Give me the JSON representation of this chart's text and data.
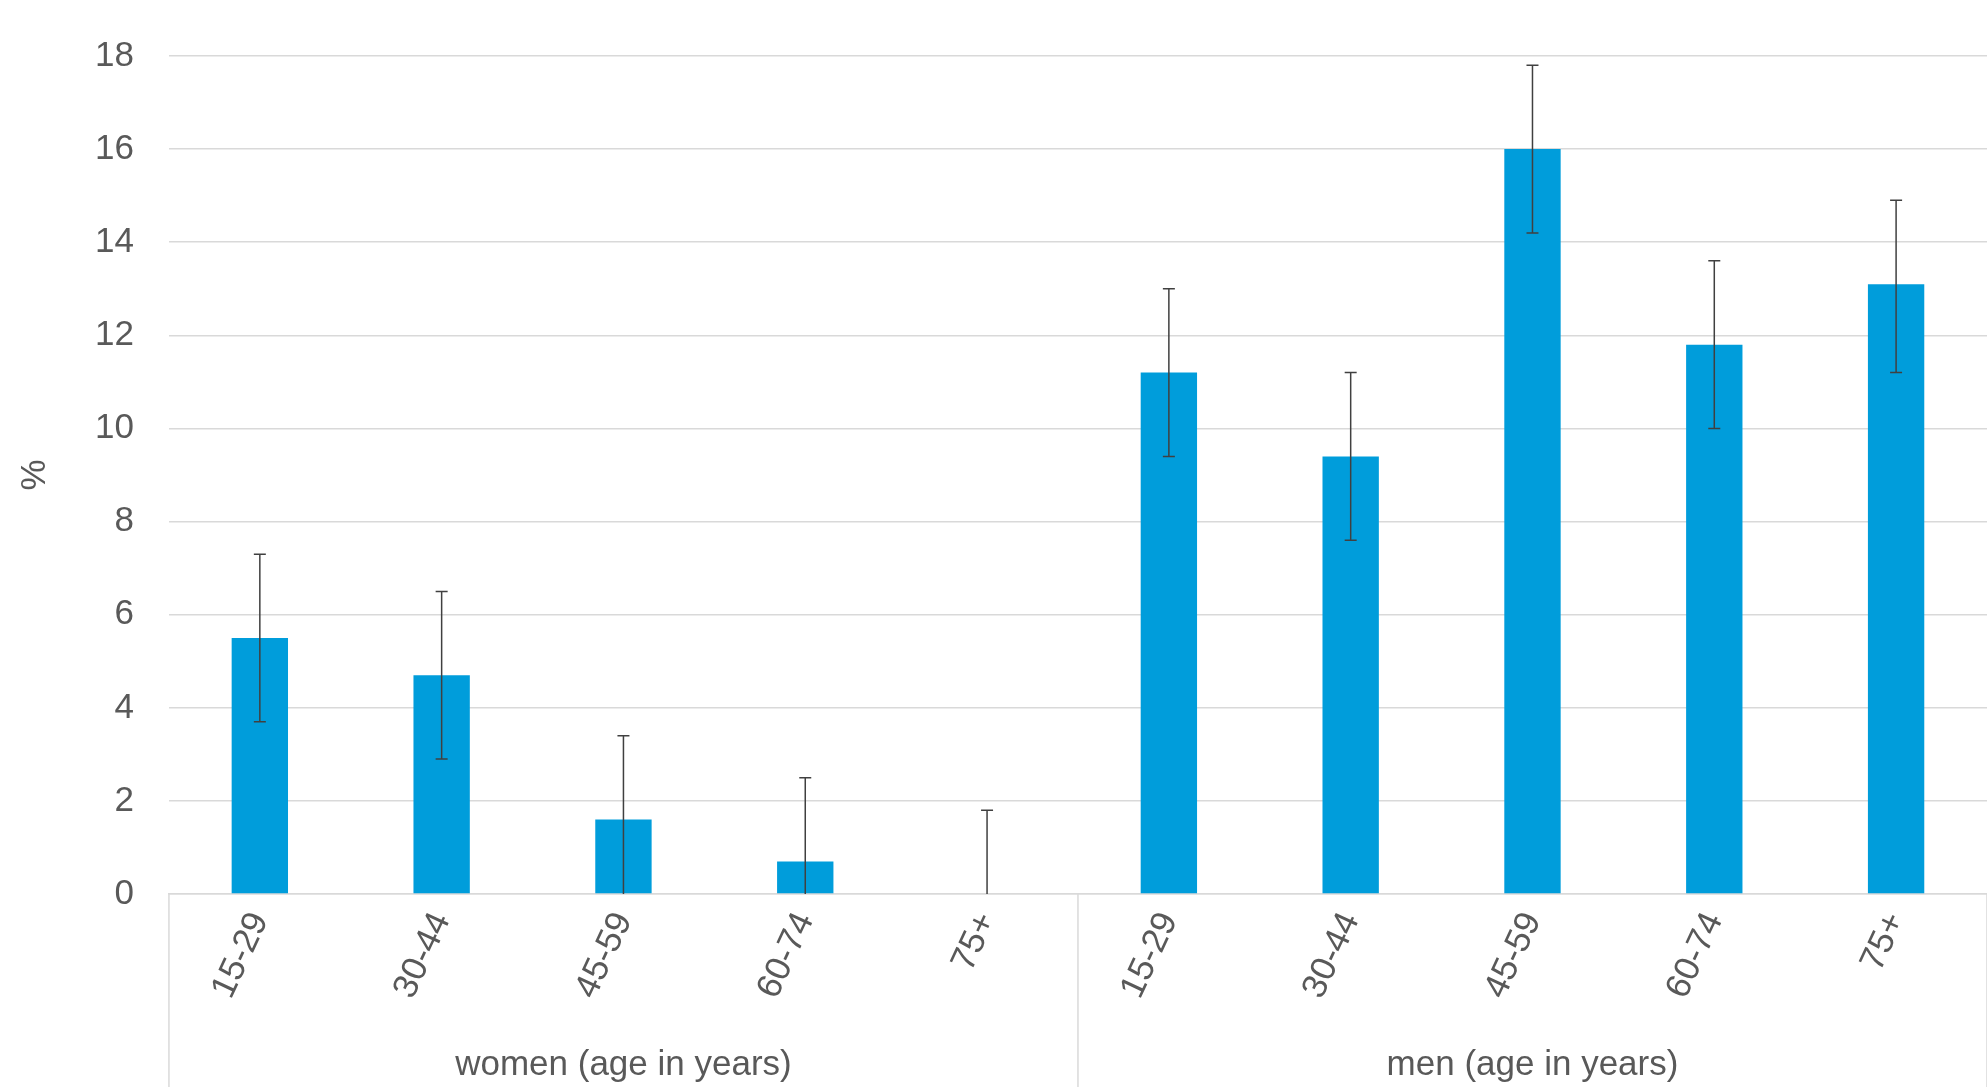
{
  "chart_data": {
    "type": "bar",
    "ylabel": "%",
    "categories": [
      "15-29",
      "30-44",
      "45-59",
      "60-74",
      "75+",
      "15-29",
      "30-44",
      "45-59",
      "60-74",
      "75+"
    ],
    "values": [
      5.5,
      4.7,
      1.6,
      0.7,
      0,
      11.2,
      9.4,
      16.0,
      11.8,
      13.1
    ],
    "errors": [
      [
        3.7,
        7.3
      ],
      [
        2.9,
        6.5
      ],
      [
        0,
        3.4
      ],
      [
        0,
        2.5
      ],
      [
        0,
        1.8
      ],
      [
        9.4,
        13.0
      ],
      [
        7.6,
        11.2
      ],
      [
        14.2,
        17.8
      ],
      [
        10.0,
        13.6
      ],
      [
        11.2,
        14.9
      ]
    ],
    "color": "#009ddb",
    "ylim": [
      0,
      18
    ],
    "yticks": [
      0,
      2,
      4,
      6,
      8,
      10,
      12,
      14,
      16,
      18
    ],
    "grid": "y",
    "legend": false,
    "annotations": [
      "women (age in years)",
      "men (age in years)"
    ]
  }
}
